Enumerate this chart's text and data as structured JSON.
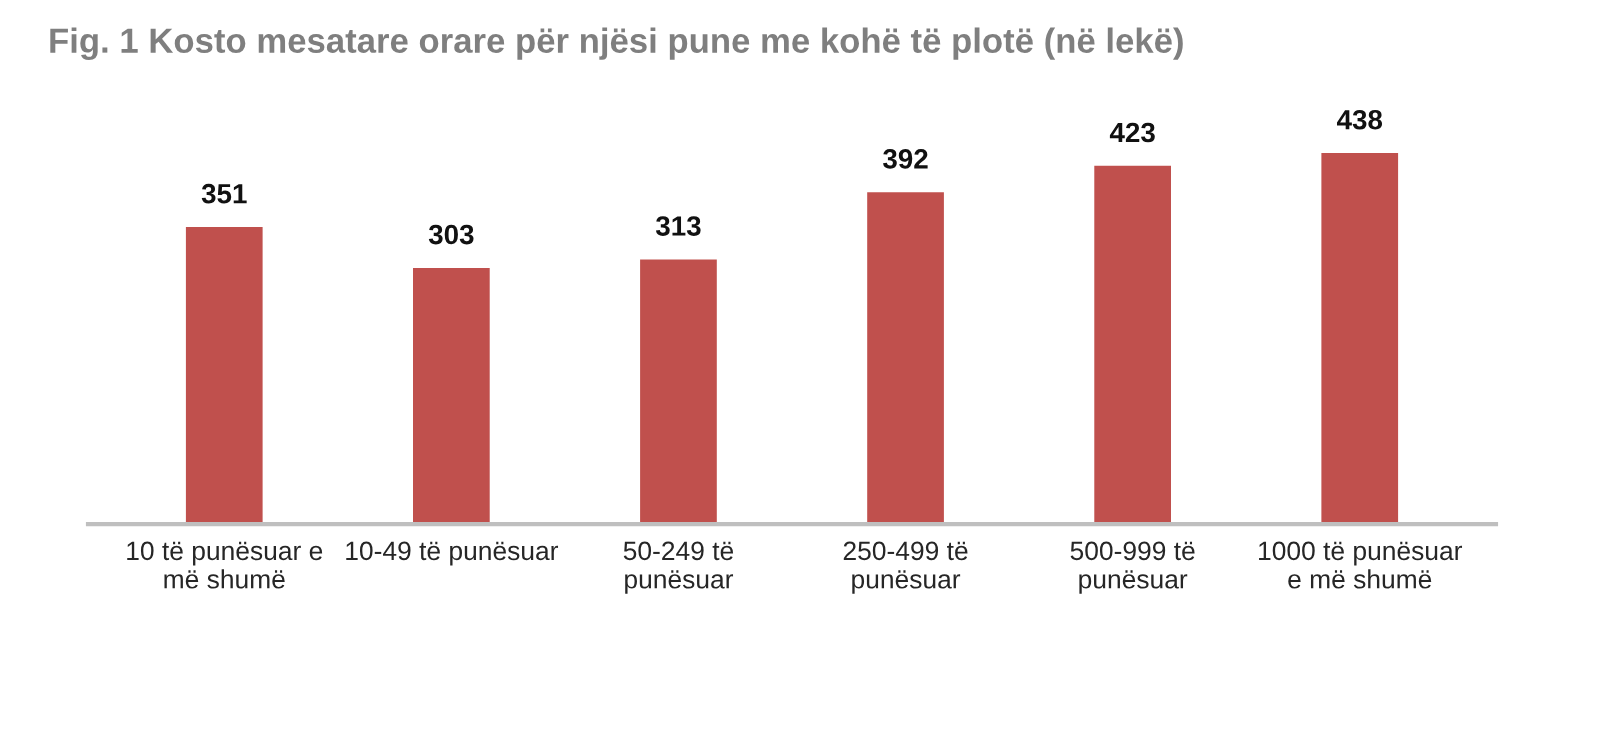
{
  "chart_data": {
    "type": "bar",
    "title": "Fig. 1 Kosto mesatare orare për njësi pune me kohë të plotë (në lekë)",
    "categories": [
      "10 të punësuar e\nmë shumë",
      "10-49 të punësuar",
      "50-249 të\npunësuar",
      "250-499 të\npunësuar",
      "500-999 të\npunësuar",
      "1000 të punësuar\ne më shumë"
    ],
    "values": [
      351,
      303,
      313,
      392,
      423,
      438
    ],
    "color": "#c0504d",
    "data_labels": true
  }
}
